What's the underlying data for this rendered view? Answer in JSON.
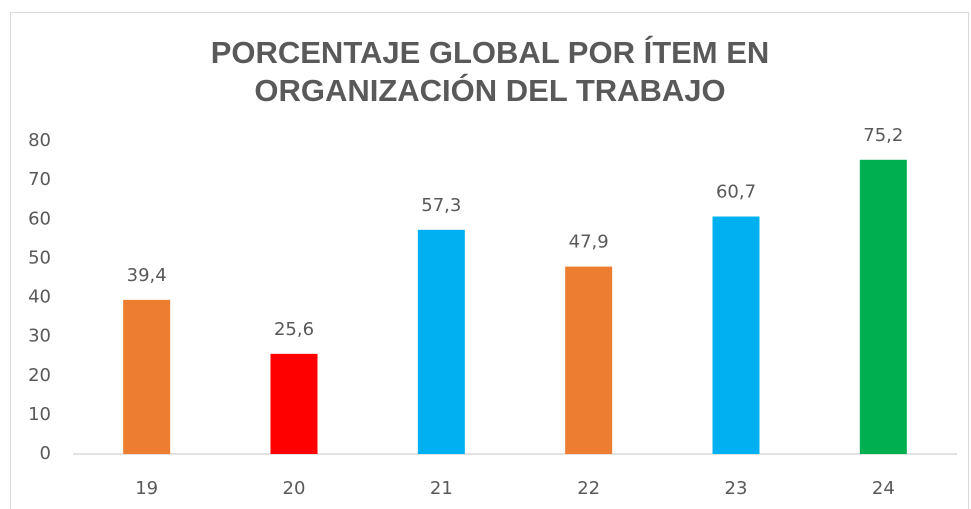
{
  "chart_data": {
    "type": "bar",
    "title": "PORCENTAJE GLOBAL POR ÍTEM EN ORGANIZACIÓN DEL TRABAJO",
    "categories": [
      "19",
      "20",
      "21",
      "22",
      "23",
      "24"
    ],
    "values": [
      39.4,
      25.6,
      57.3,
      47.9,
      60.7,
      75.2
    ],
    "value_labels": [
      "39,4",
      "25,6",
      "57,3",
      "47,9",
      "60,7",
      "75,2"
    ],
    "colors": [
      "#ed7d31",
      "#ff0000",
      "#00b0f0",
      "#ed7d31",
      "#00b0f0",
      "#00b050"
    ],
    "ylim": [
      0,
      80
    ],
    "yticks": [
      0,
      10,
      20,
      30,
      40,
      50,
      60,
      70,
      80
    ],
    "grid": false
  }
}
